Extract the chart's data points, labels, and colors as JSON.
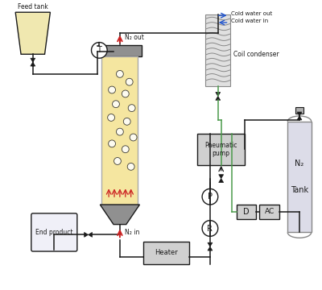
{
  "bg_color": "#ffffff",
  "line_color": "#1a1a1a",
  "green_line": "#4a9a4a",
  "blue_color": "#2255cc",
  "red_color": "#cc2222",
  "reactor_fill": "#f5e6a0",
  "reactor_border": "#aaaaaa",
  "cap_color": "#909090",
  "feed_tank_fill": "#f0e8b0",
  "end_product_fill": "#f0f0f8",
  "n2_tank_fill": "#dcdce8",
  "box_fill": "#d0d0d0",
  "condenser_fill": "#c8c8c8",
  "heater_fill": "#d0d0d0",
  "labels": {
    "feed_tank": "Feed tank",
    "end_product": "End product",
    "n2_sub": "2",
    "n2_tank_top": "N₂",
    "n2_tank_bot": "Tank",
    "n2_out": "N₂ out",
    "n2_in": "N₂ in",
    "cold_water_out": "Cold water out",
    "cold_water_in": "Cold water in",
    "coil_condenser": "Coil condenser",
    "pneumatic_pump": "Pneumatic\npump",
    "heater": "Heater",
    "T": "T",
    "P": "P",
    "R": "R",
    "D": "D",
    "AC": "AC"
  }
}
